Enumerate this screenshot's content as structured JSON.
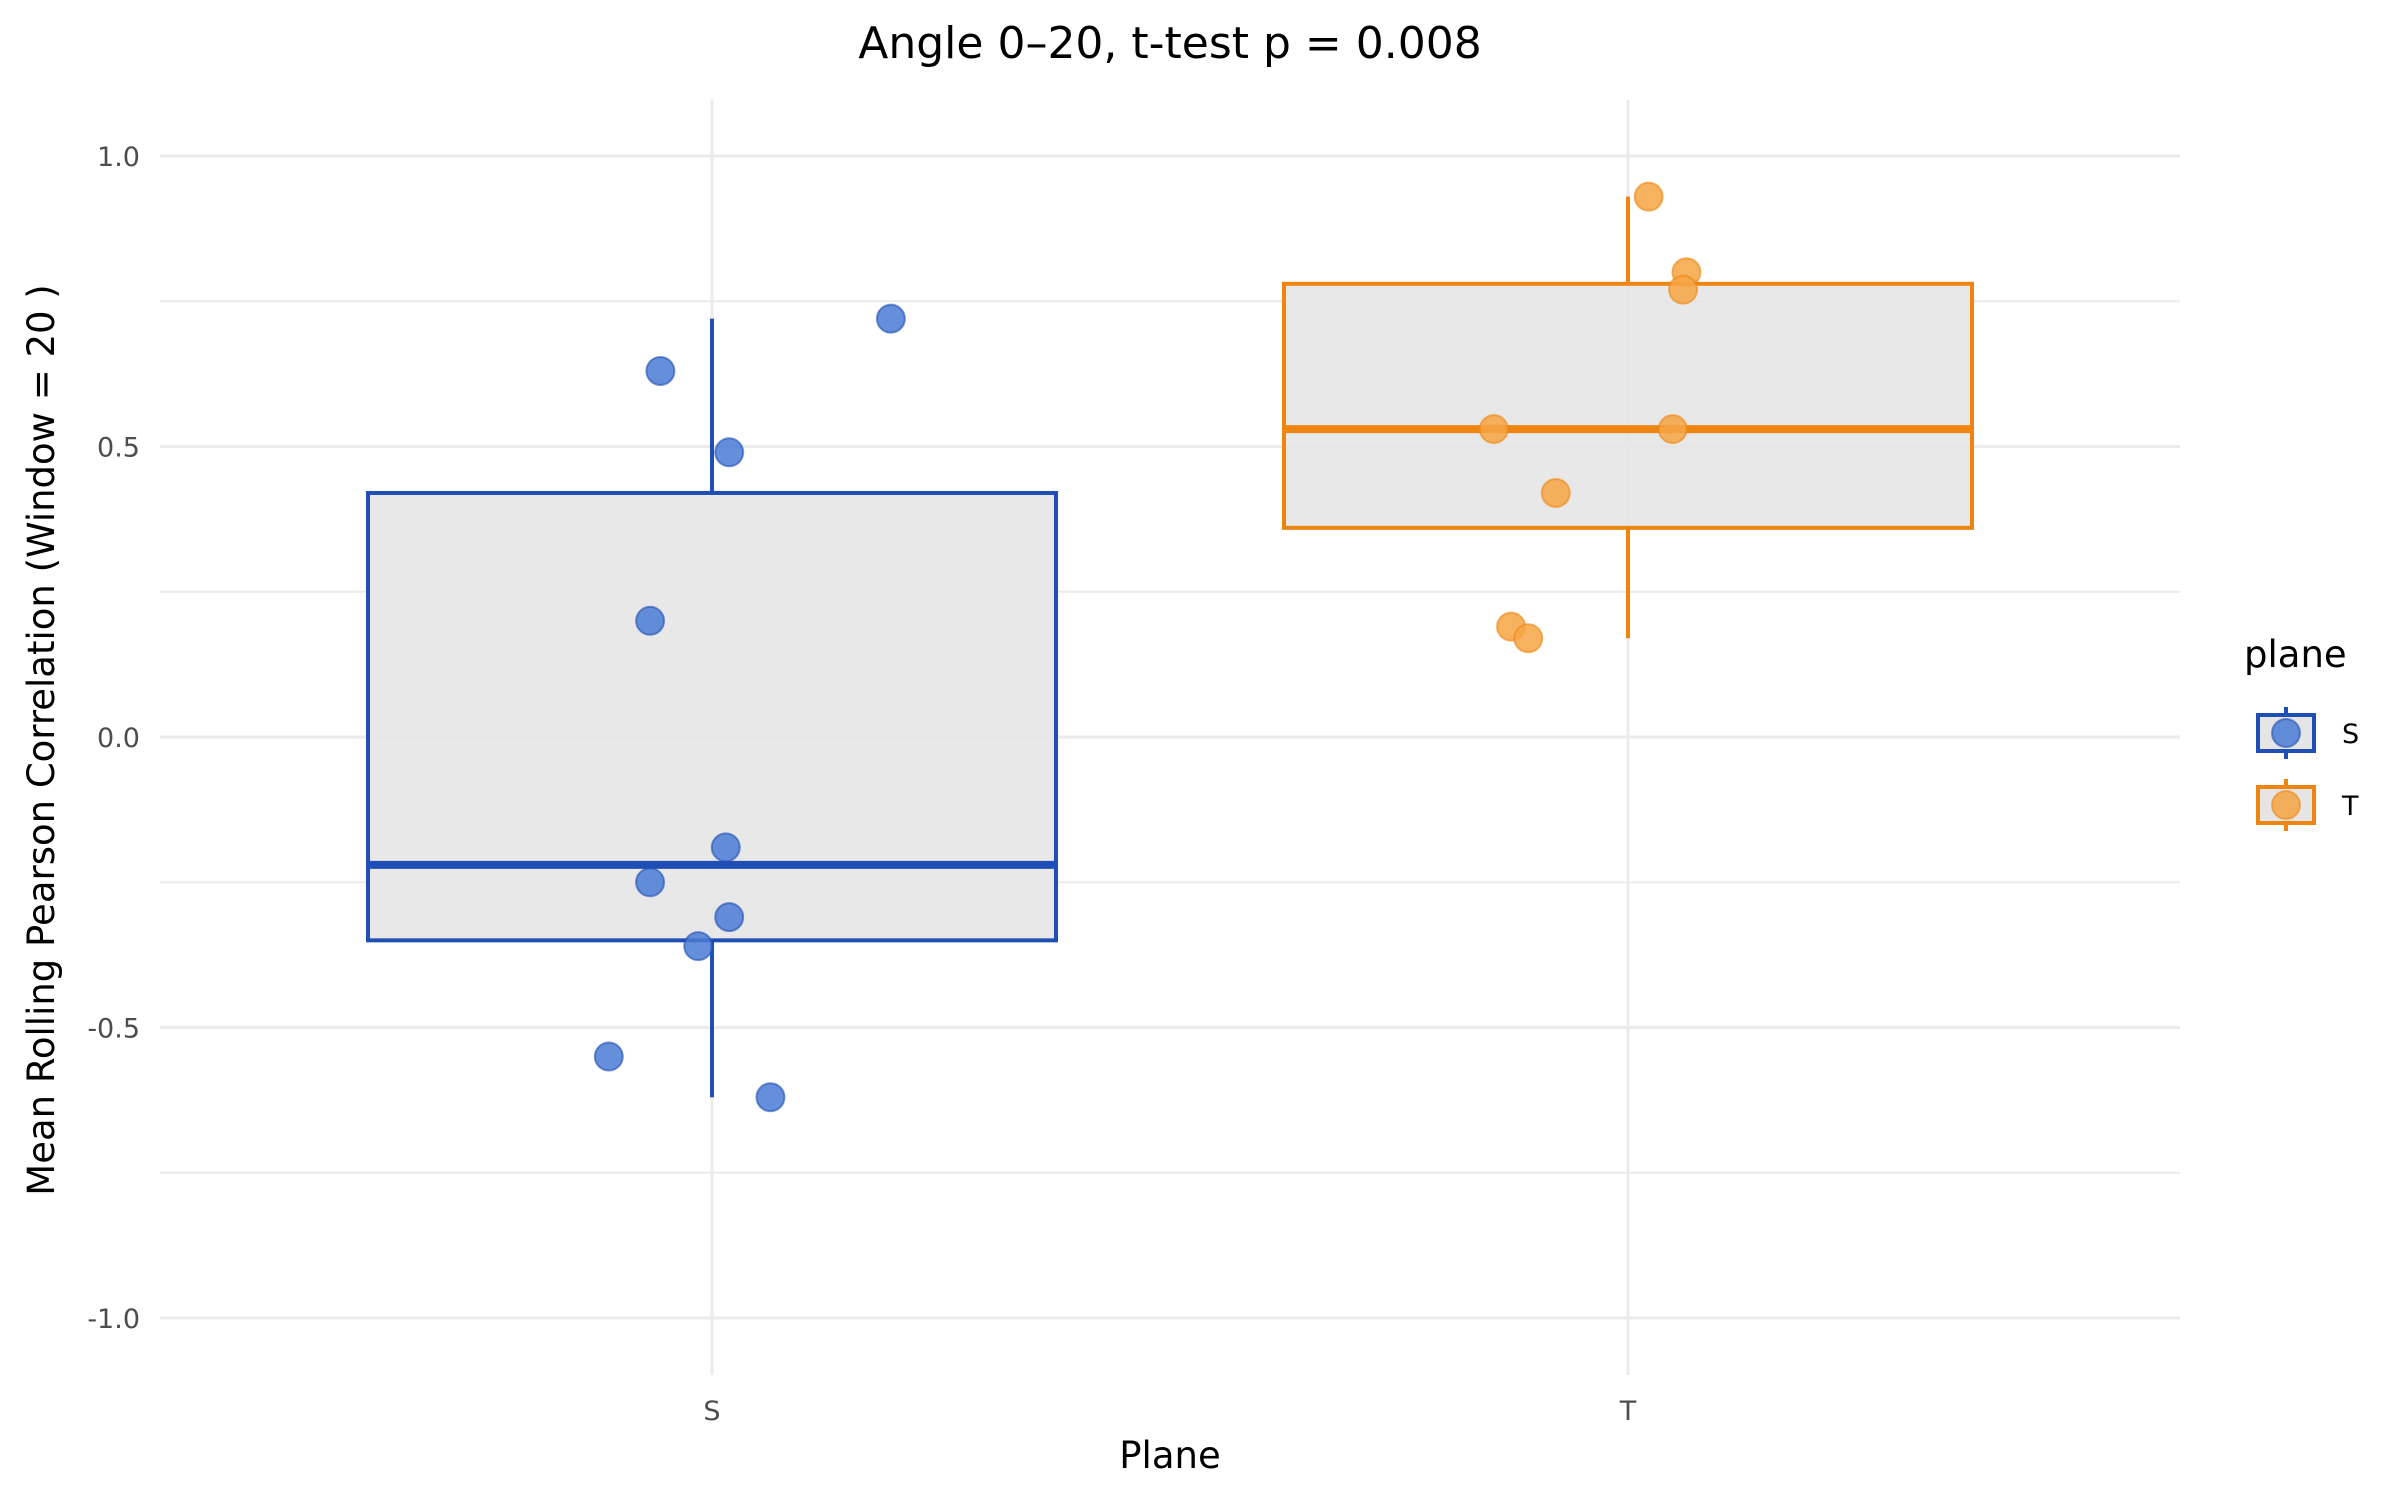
{
  "chart_data": {
    "type": "box",
    "title": "Angle 0–20, t-test p = 0.008",
    "xlabel": "Plane",
    "ylabel": "Mean Rolling Pearson Correlation (Window = 20 )",
    "categories": [
      "S",
      "T"
    ],
    "ylim": [
      -1.1,
      1.1
    ],
    "yticks": [
      {
        "value": 1.0,
        "label": "1.0"
      },
      {
        "value": 0.5,
        "label": "0.5"
      },
      {
        "value": 0.0,
        "label": "0.0"
      },
      {
        "value": -0.5,
        "label": "-0.5"
      },
      {
        "value": -1.0,
        "label": "-1.0"
      }
    ],
    "grid": true,
    "legend": {
      "title": "plane",
      "position": "right",
      "entries": [
        "S",
        "T"
      ]
    },
    "series": [
      {
        "name": "S",
        "color": "#1f4fb4",
        "point_color": "#4a7bd3",
        "box": {
          "whisker_low": -0.62,
          "q1": -0.35,
          "median": -0.22,
          "q3": 0.42,
          "whisker_high": 0.72
        },
        "points": [
          {
            "jitter": 0.52,
            "value": 0.72
          },
          {
            "jitter": -0.15,
            "value": 0.63
          },
          {
            "jitter": 0.05,
            "value": 0.49
          },
          {
            "jitter": -0.18,
            "value": 0.2
          },
          {
            "jitter": 0.04,
            "value": -0.19
          },
          {
            "jitter": -0.18,
            "value": -0.25
          },
          {
            "jitter": 0.05,
            "value": -0.31
          },
          {
            "jitter": -0.04,
            "value": -0.36
          },
          {
            "jitter": -0.3,
            "value": -0.55
          },
          {
            "jitter": 0.17,
            "value": -0.62
          }
        ]
      },
      {
        "name": "T",
        "color": "#ee8510",
        "point_color": "#f6a444",
        "box": {
          "whisker_low": 0.17,
          "q1": 0.36,
          "median": 0.53,
          "q3": 0.78,
          "whisker_high": 0.93
        },
        "points": [
          {
            "jitter": 0.06,
            "value": 0.93
          },
          {
            "jitter": 0.17,
            "value": 0.8
          },
          {
            "jitter": 0.16,
            "value": 0.77
          },
          {
            "jitter": -0.39,
            "value": 0.53
          },
          {
            "jitter": 0.13,
            "value": 0.53
          },
          {
            "jitter": -0.21,
            "value": 0.42
          },
          {
            "jitter": -0.34,
            "value": 0.19
          },
          {
            "jitter": -0.29,
            "value": 0.17
          }
        ]
      }
    ]
  }
}
